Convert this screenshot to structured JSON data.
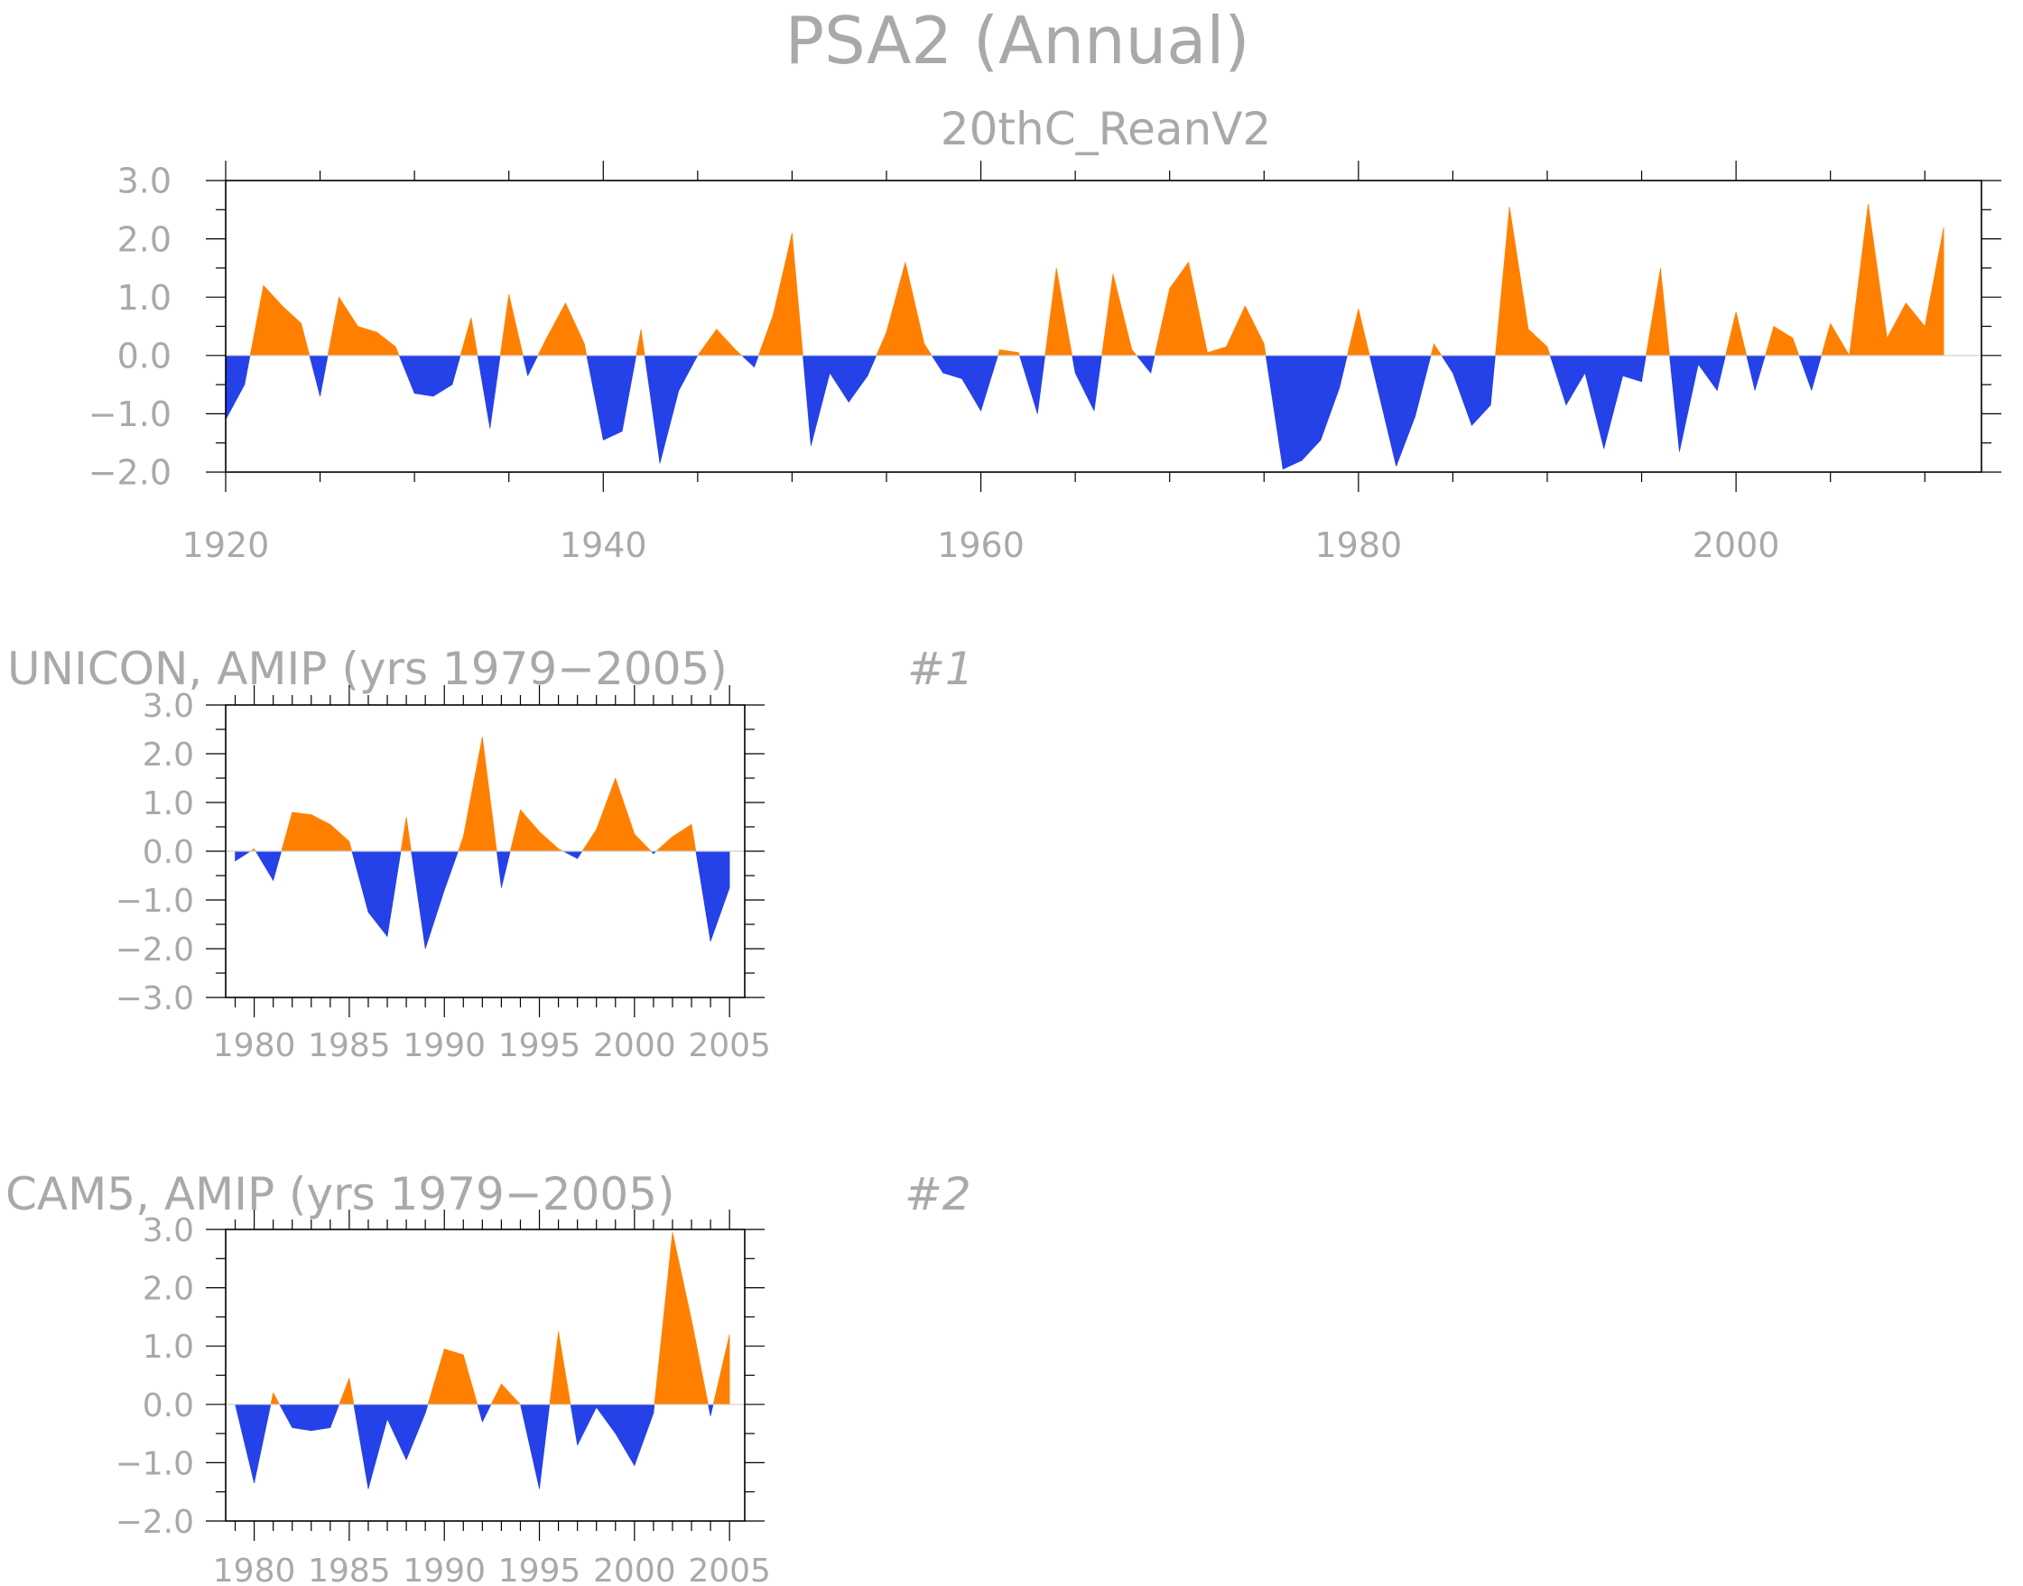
{
  "main_title": "PSA2 (Annual)",
  "colors": {
    "positive": "#ff8000",
    "negative": "#2541e8",
    "text": "#a9a9a9",
    "frame": "#000000"
  },
  "chart_data": [
    {
      "type": "area",
      "name": "20thC_ReanV2",
      "title": "20thC_ReanV2",
      "panel_label": "",
      "x": [
        1920,
        1921,
        1922,
        1923,
        1924,
        1925,
        1926,
        1927,
        1928,
        1929,
        1930,
        1931,
        1932,
        1933,
        1934,
        1935,
        1936,
        1937,
        1938,
        1939,
        1940,
        1941,
        1942,
        1943,
        1944,
        1945,
        1946,
        1947,
        1948,
        1949,
        1950,
        1951,
        1952,
        1953,
        1954,
        1955,
        1956,
        1957,
        1958,
        1959,
        1960,
        1961,
        1962,
        1963,
        1964,
        1965,
        1966,
        1967,
        1968,
        1969,
        1970,
        1971,
        1972,
        1973,
        1974,
        1975,
        1976,
        1977,
        1978,
        1979,
        1980,
        1981,
        1982,
        1983,
        1984,
        1985,
        1986,
        1987,
        1988,
        1989,
        1990,
        1991,
        1992,
        1993,
        1994,
        1995,
        1996,
        1997,
        1998,
        1999,
        2000,
        2001,
        2002,
        2003,
        2004,
        2005,
        2006,
        2007,
        2008,
        2009,
        2010,
        2011
      ],
      "values": [
        -1.1,
        -0.5,
        1.2,
        0.85,
        0.55,
        -0.7,
        1.0,
        0.5,
        0.4,
        0.15,
        -0.65,
        -0.7,
        -0.5,
        0.65,
        -1.25,
        1.05,
        -0.35,
        0.3,
        0.9,
        0.2,
        -1.45,
        -1.3,
        0.45,
        -1.85,
        -0.6,
        0.0,
        0.45,
        0.1,
        -0.2,
        0.7,
        2.1,
        -1.55,
        -0.3,
        -0.8,
        -0.35,
        0.4,
        1.6,
        0.2,
        -0.3,
        -0.4,
        -0.95,
        0.1,
        0.05,
        -1.0,
        1.5,
        -0.3,
        -0.95,
        1.4,
        0.1,
        -0.3,
        1.15,
        1.6,
        0.05,
        0.15,
        0.85,
        0.2,
        -1.95,
        -1.8,
        -1.45,
        -0.55,
        0.8,
        -0.55,
        -1.9,
        -1.05,
        0.2,
        -0.3,
        -1.2,
        -0.85,
        2.55,
        0.45,
        0.15,
        -0.85,
        -0.3,
        -1.6,
        -0.35,
        -0.45,
        1.5,
        -1.65,
        -0.15,
        -0.6,
        0.75,
        -0.6,
        0.5,
        0.3,
        -0.6,
        0.55,
        0.0,
        2.6,
        0.3,
        0.9,
        0.5,
        2.2
      ],
      "xlim": [
        1920,
        2013
      ],
      "ylim": [
        -2.0,
        3.0
      ],
      "x_ticks": [
        1920,
        1940,
        1960,
        1980,
        2000
      ],
      "y_ticks": [
        3.0,
        2.0,
        1.0,
        0.0,
        -1.0,
        -2.0
      ],
      "y_tick_labels": [
        "3.0",
        "2.0",
        "1.0",
        "0.0",
        "−1.0",
        "−2.0"
      ]
    },
    {
      "type": "area",
      "name": "UNICON",
      "title": "UNICON, AMIP (yrs 1979−2005)",
      "panel_label": "#1",
      "x": [
        1979,
        1980,
        1981,
        1982,
        1983,
        1984,
        1985,
        1986,
        1987,
        1988,
        1989,
        1990,
        1991,
        1992,
        1993,
        1994,
        1995,
        1996,
        1997,
        1998,
        1999,
        2000,
        2001,
        2002,
        2003,
        2004,
        2005
      ],
      "values": [
        -0.2,
        0.05,
        -0.6,
        0.8,
        0.75,
        0.55,
        0.2,
        -1.25,
        -1.75,
        0.7,
        -2.0,
        -0.8,
        0.3,
        2.35,
        -0.75,
        0.85,
        0.4,
        0.05,
        -0.15,
        0.45,
        1.5,
        0.35,
        -0.05,
        0.3,
        0.55,
        -1.85,
        -0.75
      ],
      "xlim": [
        1978.5,
        2005.8
      ],
      "ylim": [
        -3.0,
        3.0
      ],
      "x_ticks": [
        1980,
        1985,
        1990,
        1995,
        2000,
        2005
      ],
      "y_ticks": [
        3.0,
        2.0,
        1.0,
        0.0,
        -1.0,
        -2.0,
        -3.0
      ],
      "y_tick_labels": [
        "3.0",
        "2.0",
        "1.0",
        "0.0",
        "−1.0",
        "−2.0",
        "−3.0"
      ]
    },
    {
      "type": "area",
      "name": "CAM5",
      "title": "CAM5, AMIP (yrs 1979−2005)",
      "panel_label": "#2",
      "x": [
        1979,
        1980,
        1981,
        1982,
        1983,
        1984,
        1985,
        1986,
        1987,
        1988,
        1989,
        1990,
        1991,
        1992,
        1993,
        1994,
        1995,
        1996,
        1997,
        1998,
        1999,
        2000,
        2001,
        2002,
        2003,
        2004,
        2005
      ],
      "values": [
        0.0,
        -1.35,
        0.2,
        -0.4,
        -0.45,
        -0.4,
        0.45,
        -1.45,
        -0.25,
        -0.95,
        -0.15,
        0.95,
        0.85,
        -0.3,
        0.35,
        0.0,
        -1.45,
        1.25,
        -0.7,
        -0.05,
        -0.5,
        -1.05,
        -0.15,
        2.95,
        1.45,
        -0.2,
        1.2
      ],
      "xlim": [
        1978.5,
        2005.8
      ],
      "ylim": [
        -2.0,
        3.0
      ],
      "x_ticks": [
        1980,
        1985,
        1990,
        1995,
        2000,
        2005
      ],
      "y_ticks": [
        3.0,
        2.0,
        1.0,
        0.0,
        -1.0,
        -2.0
      ],
      "y_tick_labels": [
        "3.0",
        "2.0",
        "1.0",
        "0.0",
        "−1.0",
        "−2.0"
      ]
    }
  ]
}
